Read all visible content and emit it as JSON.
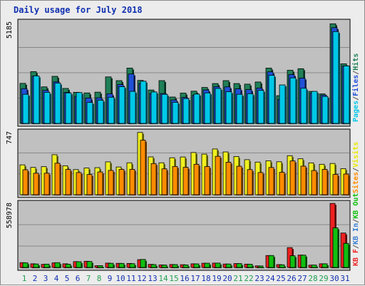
{
  "chart_data": {
    "type": "bar",
    "title": "Daily usage for July 2018",
    "categories": [
      "1",
      "2",
      "3",
      "4",
      "5",
      "6",
      "7",
      "8",
      "9",
      "10",
      "11",
      "12",
      "13",
      "14",
      "15",
      "16",
      "17",
      "18",
      "19",
      "20",
      "21",
      "22",
      "23",
      "24",
      "25",
      "26",
      "27",
      "28",
      "29",
      "30",
      "31"
    ],
    "weekend_days": [
      "1",
      "7",
      "8",
      "14",
      "15",
      "21",
      "22",
      "28",
      "29"
    ],
    "panels": [
      {
        "id": "hits_files_pages",
        "ymax": 5185,
        "ymax_label": "5185",
        "legend": [
          {
            "label": "Pages",
            "color": "#00c8e8"
          },
          {
            "label": "/",
            "color": "#555555"
          },
          {
            "label": "Files",
            "color": "#2050d8"
          },
          {
            "label": "/",
            "color": "#555555"
          },
          {
            "label": "Hits",
            "color": "#208058"
          }
        ],
        "series": [
          {
            "name": "Hits",
            "color": "#208058",
            "values": [
              2050,
              2650,
              1870,
              2410,
              1790,
              1590,
              1560,
              1600,
              2380,
              2190,
              2830,
              2200,
              1710,
              2190,
              1350,
              1550,
              1650,
              1840,
              2040,
              2190,
              2040,
              2010,
              2120,
              2830,
              1420,
              2720,
              2800,
              1640,
              1510,
              5100,
              3050
            ]
          },
          {
            "name": "Files",
            "color": "#2050d8",
            "values": [
              1780,
              2420,
              1690,
              2130,
              1590,
              1380,
              1300,
              1310,
              1510,
              1990,
              2530,
              2040,
              1520,
              1530,
              1200,
              1330,
              1440,
              1710,
              1880,
              1870,
              1770,
              1730,
              1810,
              2640,
              1230,
              2500,
              2320,
              1550,
              1450,
              4900,
              2940
            ]
          },
          {
            "name": "Pages",
            "color": "#00c8e8",
            "values": [
              1490,
              2430,
              1590,
              2060,
              1560,
              1580,
              1070,
              1190,
              1340,
              1880,
              1640,
              2160,
              1610,
              1490,
              1080,
              1270,
              1500,
              1560,
              1790,
              1620,
              1490,
              1520,
              1690,
              2460,
              1970,
              2330,
              1800,
              1640,
              1380,
              4700,
              2940
            ]
          }
        ]
      },
      {
        "id": "visits_sites",
        "ymax": 747,
        "ymax_label": "747",
        "legend": [
          {
            "label": "Sites",
            "color": "#ff8c00"
          },
          {
            "label": "/",
            "color": "#555555"
          },
          {
            "label": "Visits",
            "color": "#e8e800"
          }
        ],
        "series": [
          {
            "name": "Visits",
            "color": "#f0f020",
            "values": [
              355,
              325,
              334,
              476,
              344,
              299,
              318,
              322,
              391,
              330,
              380,
              741,
              450,
              380,
              440,
              449,
              502,
              483,
              544,
              509,
              455,
              417,
              388,
              404,
              392,
              464,
              428,
              379,
              362,
              372,
              310
            ]
          },
          {
            "name": "Sites",
            "color": "#ff8c00",
            "values": [
              297,
              256,
              256,
              375,
              300,
              264,
              241,
              271,
              289,
              302,
              302,
              649,
              371,
              308,
              336,
              326,
              362,
              335,
              457,
              387,
              339,
              299,
              264,
              324,
              267,
              402,
              340,
              288,
              302,
              242,
              246
            ]
          }
        ]
      },
      {
        "id": "kb",
        "ymax": 558978,
        "ymax_label": "558978",
        "legend": [
          {
            "label": "KB F",
            "color": "#ee2020"
          },
          {
            "label": "/",
            "color": "#555555"
          },
          {
            "label": "KB In",
            "color": "#3a7fd0"
          },
          {
            "label": "/",
            "color": "#555555"
          },
          {
            "label": "KB Out",
            "color": "#10c010"
          }
        ],
        "series": [
          {
            "name": "KB F",
            "color": "#ee2020",
            "values": [
              42000,
              32000,
              27000,
              40000,
              32000,
              51000,
              54000,
              15000,
              38000,
              36000,
              35000,
              68000,
              27000,
              22000,
              26000,
              24000,
              32000,
              37000,
              38000,
              30000,
              34000,
              29000,
              14000,
              104000,
              25000,
              173000,
              108000,
              20000,
              32000,
              558000,
              300000
            ]
          },
          {
            "name": "KB Out",
            "color": "#10c010",
            "values": [
              41000,
              30000,
              29000,
              42000,
              28000,
              50000,
              52000,
              16000,
              36000,
              35000,
              33000,
              70000,
              25000,
              21000,
              25000,
              22000,
              31000,
              37000,
              38000,
              30000,
              34000,
              28000,
              13000,
              104000,
              23000,
              102000,
              107000,
              21000,
              32000,
              345000,
              210000
            ]
          }
        ]
      }
    ]
  }
}
